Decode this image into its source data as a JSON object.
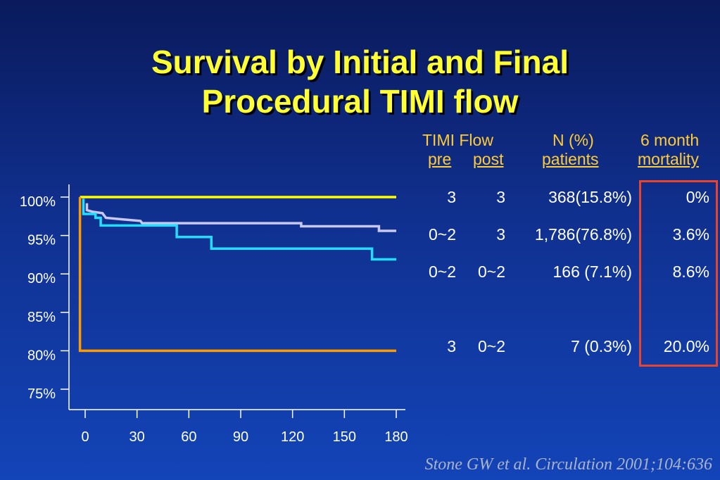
{
  "title": {
    "line1": "Survival by Initial and Final",
    "line2": "Procedural TIMI flow"
  },
  "table": {
    "header_group": "TIMI Flow",
    "header_pre": "pre",
    "header_post": "post",
    "header_n": "N (%)",
    "header_n_sub": "patients",
    "header_mort": "6 month",
    "header_mort_sub": "mortality",
    "rows": [
      {
        "pre": "3",
        "post": "3",
        "n": "368(15.8%)",
        "mortality": "0%"
      },
      {
        "pre": "0~2",
        "post": "3",
        "n": "1,786(76.8%)",
        "mortality": "3.6%"
      },
      {
        "pre": "0~2",
        "post": "0~2",
        "n": "166 (7.1%)",
        "mortality": "8.6%"
      },
      {
        "pre": "3",
        "post": "0~2",
        "n": "7 (0.3%)",
        "mortality": "20.0%"
      }
    ]
  },
  "citation": "Stone GW et al. Circulation 2001;104:636",
  "colors": {
    "yellow": "#ffff00",
    "lavender": "#c8c8ee",
    "cyan": "#22ddff",
    "orange": "#ff9900",
    "header": "#ffcc33",
    "box": "#e8432b"
  },
  "chart_data": {
    "type": "line",
    "title": "",
    "xlabel": "",
    "ylabel": "",
    "xlim": [
      0,
      180
    ],
    "ylim": [
      75,
      100
    ],
    "x_ticks": [
      0,
      30,
      60,
      90,
      120,
      150,
      180
    ],
    "x_tick_labels": [
      "0",
      "30",
      "60",
      "90",
      "120",
      "150",
      "180"
    ],
    "y_ticks": [
      100,
      95,
      90,
      85,
      80,
      75
    ],
    "y_tick_labels": [
      "100%",
      "95%",
      "90%",
      "85%",
      "80%",
      "75%"
    ],
    "grid": false,
    "series": [
      {
        "color": "#ffff00",
        "points": [
          [
            -3,
            100
          ],
          [
            180,
            100
          ]
        ]
      },
      {
        "color": "#c8c8ee",
        "points": [
          [
            1,
            99.2
          ],
          [
            1,
            98.3
          ],
          [
            4,
            98.1
          ],
          [
            10,
            97.9
          ],
          [
            12,
            97.3
          ],
          [
            22,
            97.1
          ],
          [
            32,
            96.9
          ],
          [
            33,
            96.6
          ],
          [
            37,
            96.6
          ],
          [
            125,
            96.6
          ],
          [
            125,
            96.2
          ],
          [
            170,
            96.2
          ],
          [
            170,
            95.6
          ],
          [
            180,
            95.6
          ]
        ]
      },
      {
        "color": "#22ddff",
        "points": [
          [
            -1,
            99.8
          ],
          [
            -1,
            97.8
          ],
          [
            6,
            97.8
          ],
          [
            6,
            97.3
          ],
          [
            9,
            97.3
          ],
          [
            9,
            96.3
          ],
          [
            53,
            96.3
          ],
          [
            53,
            94.8
          ],
          [
            73,
            94.8
          ],
          [
            73,
            93.3
          ],
          [
            166,
            93.3
          ],
          [
            166,
            91.9
          ],
          [
            180,
            91.9
          ]
        ]
      },
      {
        "color": "#ff9900",
        "points": [
          [
            -3,
            100
          ],
          [
            -3,
            80
          ],
          [
            180,
            80
          ]
        ]
      }
    ]
  }
}
